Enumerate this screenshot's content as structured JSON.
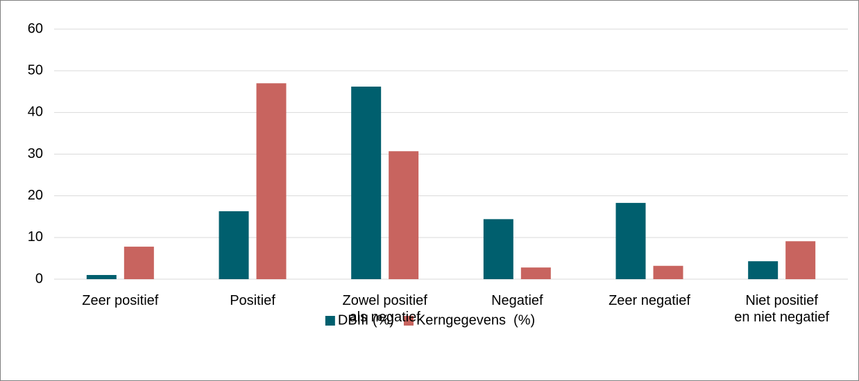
{
  "chart_data": {
    "type": "bar",
    "categories": [
      "Zeer positief",
      "Positief",
      "Zowel positief\nals negatief",
      "Negatief",
      "Zeer negatief",
      "Niet positief\nen niet negatief"
    ],
    "series": [
      {
        "name": "DBIII (%)",
        "color": "#005f6e",
        "values": [
          1.0,
          16.3,
          46.2,
          14.4,
          18.3,
          4.3
        ]
      },
      {
        "name": "Kerngegevens  (%)",
        "color": "#c8645f",
        "values": [
          7.8,
          47.0,
          30.7,
          2.8,
          3.2,
          9.1
        ]
      }
    ],
    "ylim": [
      0,
      60
    ],
    "yticks": [
      0,
      10,
      20,
      30,
      40,
      50,
      60
    ],
    "grid": true,
    "legend": "bottom"
  }
}
